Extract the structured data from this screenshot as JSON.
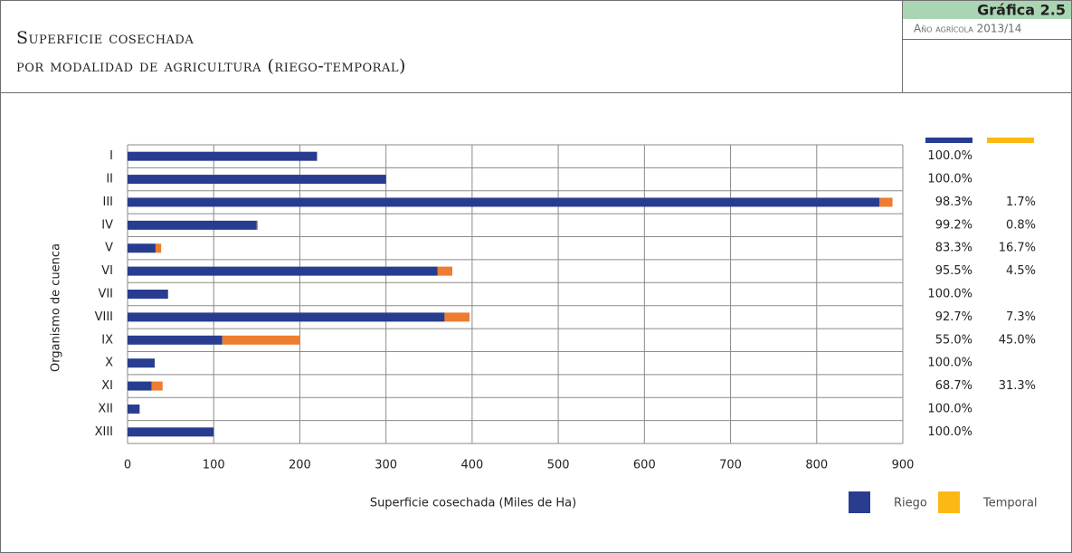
{
  "header": {
    "title_line1": "Superficie cosechada",
    "title_line2": "por modalidad de agricultura (riego-temporal)",
    "chart_number": "Gráfica 2.5",
    "period": "Año agrícola 2013/14"
  },
  "chart_data": {
    "type": "stacked-barh",
    "categories": [
      "I",
      "II",
      "III",
      "IV",
      "V",
      "VI",
      "VII",
      "VIII",
      "IX",
      "X",
      "XI",
      "XII",
      "XIII"
    ],
    "series": [
      {
        "name": "Riego",
        "color": "#283d8f",
        "legend_color": "#283d8f",
        "values": [
          220,
          300,
          873,
          150,
          32.5,
          360,
          47,
          368,
          110,
          31.5,
          28,
          14,
          100
        ],
        "share_labels": [
          "100.0%",
          "100.0%",
          "98.3%",
          "99.2%",
          "83.3%",
          "95.5%",
          "100.0%",
          "92.7%",
          "55.0%",
          "100.0%",
          "68.7%",
          "100.0%",
          "100.0%"
        ]
      },
      {
        "name": "Temporal",
        "color": "#ed7d31",
        "legend_color": "#fdb913",
        "values": [
          0,
          0,
          15,
          1.2,
          6.5,
          17,
          0,
          29,
          90,
          0,
          12.7,
          0,
          0
        ],
        "share_labels": [
          null,
          null,
          "1.7%",
          "0.8%",
          "16.7%",
          "4.5%",
          null,
          "7.3%",
          "45.0%",
          null,
          "31.3%",
          null,
          null
        ]
      }
    ],
    "xlabel": "Superficie cosechada  (Miles de Ha)",
    "ylabel": "Organismo de cuenca",
    "xlim": [
      0,
      900
    ],
    "xticks": [
      0,
      100,
      200,
      300,
      400,
      500,
      600,
      700,
      800,
      900
    ],
    "grid": true
  }
}
